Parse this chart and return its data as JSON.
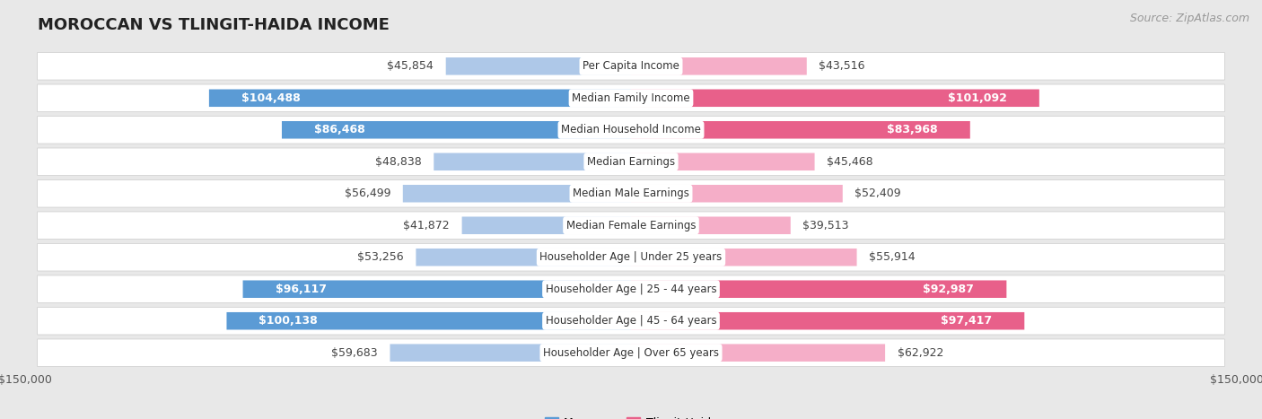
{
  "title": "MOROCCAN VS TLINGIT-HAIDA INCOME",
  "source": "Source: ZipAtlas.com",
  "categories": [
    "Per Capita Income",
    "Median Family Income",
    "Median Household Income",
    "Median Earnings",
    "Median Male Earnings",
    "Median Female Earnings",
    "Householder Age | Under 25 years",
    "Householder Age | 25 - 44 years",
    "Householder Age | 45 - 64 years",
    "Householder Age | Over 65 years"
  ],
  "moroccan_values": [
    45854,
    104488,
    86468,
    48838,
    56499,
    41872,
    53256,
    96117,
    100138,
    59683
  ],
  "tlingit_values": [
    43516,
    101092,
    83968,
    45468,
    52409,
    39513,
    55914,
    92987,
    97417,
    62922
  ],
  "moroccan_labels": [
    "$45,854",
    "$104,488",
    "$86,468",
    "$48,838",
    "$56,499",
    "$41,872",
    "$53,256",
    "$96,117",
    "$100,138",
    "$59,683"
  ],
  "tlingit_labels": [
    "$43,516",
    "$101,092",
    "$83,968",
    "$45,468",
    "$52,409",
    "$39,513",
    "$55,914",
    "$92,987",
    "$97,417",
    "$62,922"
  ],
  "moroccan_color_light": "#aec8e8",
  "moroccan_color_dark": "#5b9bd5",
  "tlingit_color_light": "#f5aec8",
  "tlingit_color_dark": "#e8608a",
  "max_value": 150000,
  "bg_color": "#e8e8e8",
  "row_color": "#ffffff",
  "label_threshold": 80000,
  "title_fontsize": 13,
  "source_fontsize": 9,
  "bar_label_fontsize": 9,
  "category_fontsize": 8.5,
  "axis_label_fontsize": 9
}
